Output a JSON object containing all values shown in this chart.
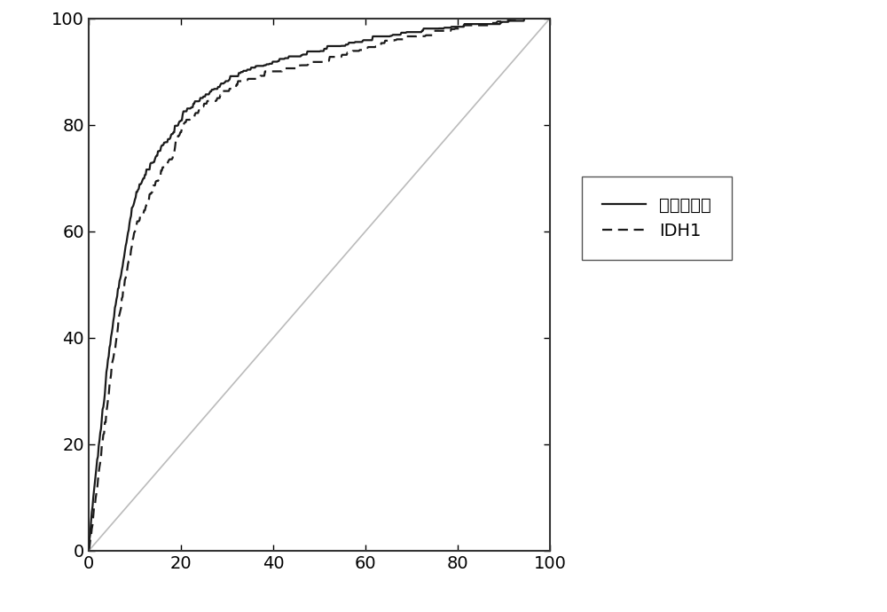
{
  "title": "",
  "xlim": [
    0,
    100
  ],
  "ylim": [
    0,
    100
  ],
  "xticks": [
    0,
    20,
    40,
    60,
    80,
    100
  ],
  "yticks": [
    0,
    20,
    40,
    60,
    80,
    100
  ],
  "reference_line_color": "#bbbbbb",
  "curve1_color": "#1a1a1a",
  "curve1_style": "solid",
  "curve1_linewidth": 1.6,
  "curve1_label": "肺腺癌模型",
  "curve2_color": "#1a1a1a",
  "curve2_style": "dashed",
  "curve2_linewidth": 1.6,
  "curve2_label": "IDH1",
  "legend_fontsize": 14,
  "tick_fontsize": 14,
  "background_color": "#ffffff",
  "fig_width": 10.0,
  "fig_height": 6.9
}
